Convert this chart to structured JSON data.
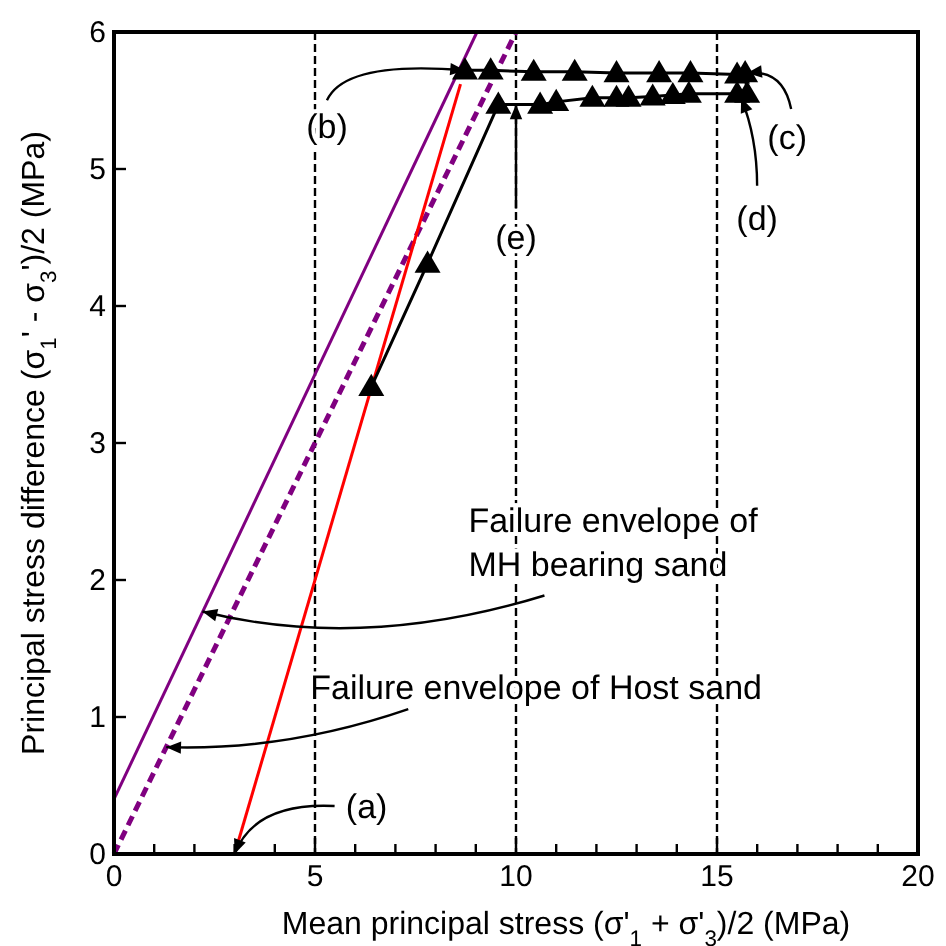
{
  "chart_data": {
    "type": "line",
    "xlabel": "Mean principal stress   (σ'$_{1}$ + σ'$_{3}$)/2 (MPa)",
    "ylabel": "Principal stress difference  (σ$_{1}$' - σ$_{3}$')/2 (MPa)",
    "xlim": [
      0,
      20
    ],
    "ylim": [
      0,
      6
    ],
    "xticks": [
      0,
      {
        "value": 1,
        "label": null
      },
      {
        "value": 2,
        "label": null
      },
      {
        "value": 3,
        "label": null
      },
      {
        "value": 4,
        "label": null
      },
      5,
      {
        "value": 6,
        "label": null
      },
      {
        "value": 7,
        "label": null
      },
      {
        "value": 8,
        "label": null
      },
      {
        "value": 9,
        "label": null
      },
      10,
      {
        "value": 11,
        "label": null
      },
      {
        "value": 12,
        "label": null
      },
      {
        "value": 13,
        "label": null
      },
      {
        "value": 14,
        "label": null
      },
      15,
      {
        "value": 16,
        "label": null
      },
      {
        "value": 17,
        "label": null
      },
      {
        "value": 18,
        "label": null
      },
      {
        "value": 19,
        "label": null
      },
      20
    ],
    "yticks": [
      0,
      1,
      2,
      3,
      4,
      5,
      6
    ],
    "grid": "x",
    "series": [
      {
        "color": "#800080",
        "x": [
          0,
          9.03
        ],
        "values": [
          0.4,
          6
        ],
        "marker": "none",
        "line_style": "solid"
      },
      {
        "color": "#800080",
        "x": [
          0,
          10
        ],
        "values": [
          0,
          6
        ],
        "marker": "none",
        "line_style": "dashed"
      },
      {
        "color": "#ff0000",
        "x": [
          3,
          8.62
        ],
        "values": [
          0,
          5.62
        ],
        "marker": "none",
        "line_style": "solid"
      },
      {
        "color": "#000000",
        "x": [
          8.73,
          9.37,
          10.44,
          11.46,
          12.5,
          13.56,
          14.34,
          15.5,
          15.7,
          15.75,
          15.5,
          14.3,
          13.9,
          13.4,
          12.8,
          12.5,
          11.9,
          11.0,
          10.6,
          9.56,
          7.8,
          6.4
        ],
        "values": [
          5.72,
          5.72,
          5.71,
          5.71,
          5.7,
          5.7,
          5.7,
          5.69,
          5.7,
          5.55,
          5.55,
          5.55,
          5.54,
          5.53,
          5.52,
          5.52,
          5.52,
          5.49,
          5.47,
          5.47,
          4.31,
          3.41
        ],
        "marker": "triangle",
        "line_style": "solid"
      }
    ],
    "annotations": [
      {
        "text": "(a)",
        "x": 3,
        "y": 0
      },
      {
        "text": "(b)",
        "x": 8.73,
        "y": 5.72
      },
      {
        "text": "(c)",
        "x": 15.75,
        "y": 5.7
      },
      {
        "text": "(d)",
        "x": 15.6,
        "y": 5.52
      },
      {
        "text": "(e)",
        "x": 10,
        "y": 5.47
      },
      {
        "text": "Failure envelope of\nMH bearing sand",
        "x": 2.2,
        "y": 1.77
      },
      {
        "text": "Failure envelope of Host sand",
        "x": 1.3,
        "y": 0.78
      }
    ]
  }
}
